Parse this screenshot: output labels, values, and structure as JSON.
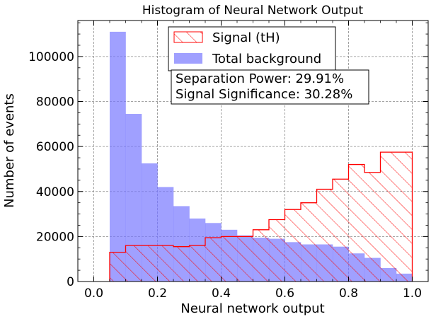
{
  "chart_data": {
    "type": "bar",
    "title": "Histogram of Neural Network Output",
    "xlabel": "Neural network output",
    "ylabel": "Number of events",
    "xlim": [
      -0.05,
      1.05
    ],
    "ylim": [
      0,
      116000
    ],
    "xticks": [
      "0.0",
      "0.2",
      "0.4",
      "0.6",
      "0.8",
      "1.0"
    ],
    "yticks": [
      "0",
      "20000",
      "40000",
      "60000",
      "80000",
      "100000"
    ],
    "grid": true,
    "legend_placement": "top-center",
    "bin_edges": [
      0.05,
      0.1,
      0.15,
      0.2,
      0.25,
      0.3,
      0.35,
      0.4,
      0.45,
      0.5,
      0.55,
      0.6,
      0.65,
      0.7,
      0.75,
      0.8,
      0.85,
      0.9,
      0.95,
      1.0
    ],
    "series": [
      {
        "name": "Signal (tH)",
        "style": "hatched-step",
        "color": "#ff0000",
        "values": [
          13000,
          16000,
          16000,
          16000,
          15500,
          16000,
          19500,
          20000,
          20000,
          23000,
          27500,
          32000,
          35000,
          41000,
          45500,
          52000,
          48500,
          57500,
          57500
        ]
      },
      {
        "name": "Total background",
        "style": "filled",
        "color": "#7777ff",
        "values": [
          111000,
          74500,
          52500,
          42000,
          33500,
          28000,
          26000,
          23000,
          20500,
          19500,
          19000,
          17500,
          16500,
          16500,
          15500,
          12500,
          10500,
          6000,
          3500
        ]
      }
    ],
    "annotations": [
      "Separation Power: 29.91%",
      "Signal Significance: 30.28%"
    ]
  }
}
